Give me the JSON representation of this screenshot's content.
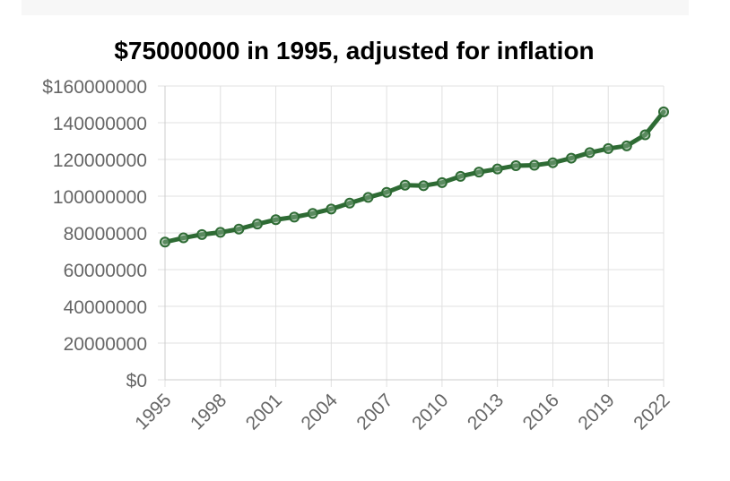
{
  "chart_data": {
    "type": "line",
    "title": "$75000000 in 1995, adjusted for inflation",
    "xlabel": "",
    "ylabel": "",
    "x": [
      1995,
      1996,
      1997,
      1998,
      1999,
      2000,
      2001,
      2002,
      2003,
      2004,
      2005,
      2006,
      2007,
      2008,
      2009,
      2010,
      2011,
      2012,
      2013,
      2014,
      2015,
      2016,
      2017,
      2018,
      2019,
      2020,
      2021,
      2022
    ],
    "x_tick_labels": [
      "1995",
      "1998",
      "2001",
      "2004",
      "2007",
      "2010",
      "2013",
      "2016",
      "2019",
      "2022"
    ],
    "y_tick_values": [
      0,
      20000000,
      40000000,
      60000000,
      80000000,
      100000000,
      120000000,
      140000000,
      160000000
    ],
    "y_tick_labels": [
      "$0",
      "20000000",
      "40000000",
      "60000000",
      "80000000",
      "100000000",
      "120000000",
      "140000000",
      "$160000000"
    ],
    "ylim": [
      0,
      160000000
    ],
    "grid": true,
    "legend": "none",
    "series": [
      {
        "color": "#2e6b34",
        "values": [
          75000000,
          77300000,
          79100000,
          80300000,
          82100000,
          84800000,
          87200000,
          88600000,
          90600000,
          93000000,
          96200000,
          99300000,
          102100000,
          106000000,
          105700000,
          107400000,
          110800000,
          113100000,
          114800000,
          116600000,
          116800000,
          118200000,
          120700000,
          123700000,
          125900000,
          127400000,
          133400000,
          145900000
        ]
      }
    ]
  }
}
